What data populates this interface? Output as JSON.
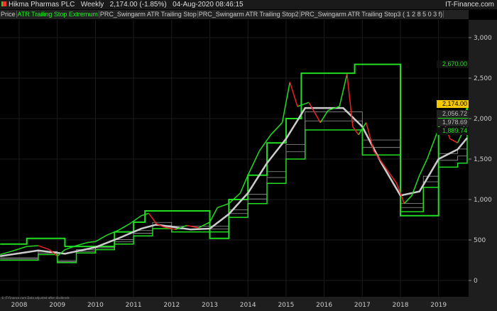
{
  "header": {
    "instrument": "Hikma Pharmas PLC",
    "period": "Weekly",
    "last": "2,174.00 (-1.85%)",
    "datetime": "04-Aug-2020 08:46:15",
    "brand": "IT-Finance.com"
  },
  "legend": {
    "items": [
      "Price",
      "ATR Trailing Stop Extremum",
      "PRC_Swingarm ATR Trailing Stop",
      "PRC_Swingarm ATR Trailing Stop2",
      "PRC_Swingarm ATR Trailing Stop3 ( 1 2 8 5 0 3 f)"
    ]
  },
  "footer": {
    "copyright": "© IT-Finance.com  Data adjusted after dividends"
  },
  "price_tags": [
    {
      "text": "2,670.00",
      "value": 2670,
      "color": "#22dd22",
      "bg": "#111"
    },
    {
      "text": "2,174.00",
      "value": 2174,
      "color": "#000",
      "bg": "#f5c800"
    },
    {
      "text": "2,056.72",
      "value": 2056.72,
      "color": "#bbb",
      "bg": "#222"
    },
    {
      "text": "1,978.69",
      "value": 1978.69,
      "color": "#bbb",
      "bg": "#222"
    },
    {
      "text": "1,889.74",
      "value": 1889.74,
      "color": "#22dd22",
      "bg": "#111"
    }
  ],
  "chart_data": {
    "type": "line",
    "xlabel": "",
    "ylabel": "",
    "ylim": [
      -200,
      3300
    ],
    "xlim": [
      2007.5,
      2019.75
    ],
    "y_ticks": [
      0,
      500,
      1000,
      1500,
      2000,
      2500,
      3000
    ],
    "y_tick_labels": [
      "0",
      "500",
      "1,000",
      "1,500",
      "2,000",
      "2,500",
      "3,000"
    ],
    "x_ticks": [
      2008,
      2009,
      2010,
      2011,
      2012,
      2013,
      2014,
      2015,
      2016,
      2017,
      2018,
      2019
    ],
    "grid": true,
    "colors": {
      "up": "#22dd22",
      "down": "#ee2222",
      "mid": "#cccccc",
      "band": "#999999"
    },
    "price": {
      "x": [
        2007.5,
        2007.8,
        2008.2,
        2008.5,
        2008.8,
        2009.0,
        2009.2,
        2009.5,
        2009.8,
        2010.0,
        2010.3,
        2010.6,
        2010.9,
        2011.2,
        2011.4,
        2011.6,
        2011.8,
        2012.1,
        2012.4,
        2012.7,
        2013.0,
        2013.2,
        2013.5,
        2013.8,
        2014.0,
        2014.3,
        2014.6,
        2014.9,
        2015.1,
        2015.3,
        2015.6,
        2015.9,
        2016.1,
        2016.4,
        2016.6,
        2016.75,
        2016.9,
        2017.1,
        2017.3,
        2017.6,
        2017.9,
        2018.1,
        2018.3,
        2018.5,
        2018.7,
        2018.9,
        2019.1,
        2019.3,
        2019.5,
        2019.65,
        2019.75
      ],
      "y": [
        320,
        360,
        420,
        430,
        380,
        300,
        380,
        430,
        470,
        480,
        560,
        620,
        700,
        800,
        830,
        700,
        660,
        630,
        680,
        650,
        720,
        900,
        950,
        1080,
        1300,
        1600,
        1800,
        1950,
        2450,
        2150,
        2200,
        1950,
        2100,
        2150,
        2550,
        1900,
        1800,
        1950,
        1600,
        1400,
        1200,
        950,
        1050,
        1300,
        1500,
        1750,
        2000,
        1750,
        1700,
        1850,
        2174
      ]
    },
    "mid": {
      "x": [
        2007.5,
        2008.5,
        2009.2,
        2010.0,
        2010.6,
        2011.2,
        2011.6,
        2012.5,
        2013.0,
        2013.5,
        2014.0,
        2014.5,
        2015.0,
        2015.5,
        2016.5,
        2017.0,
        2017.5,
        2018.0,
        2018.5,
        2019.0,
        2019.5,
        2019.75
      ],
      "y": [
        300,
        370,
        330,
        410,
        520,
        640,
        690,
        630,
        640,
        820,
        1080,
        1450,
        1750,
        2130,
        2130,
        1900,
        1450,
        1050,
        1100,
        1500,
        1620,
        1760
      ]
    },
    "stop_extremum": {
      "x": [
        2007.5,
        2008.2,
        2008.8,
        2009.2,
        2010.5,
        2011.0,
        2011.3,
        2011.6,
        2013.0,
        2013.5,
        2014.0,
        2014.5,
        2015.0,
        2015.4,
        2016.5,
        2016.8,
        2017.0,
        2018.0,
        2018.4,
        2019.0,
        2019.65,
        2019.75
      ],
      "y": [
        450,
        520,
        520,
        420,
        600,
        720,
        860,
        860,
        520,
        1000,
        1300,
        1700,
        2000,
        2560,
        2560,
        2670,
        2670,
        800,
        800,
        2000,
        2000,
        2180
      ]
    },
    "stop_lower": {
      "x": [
        2007.5,
        2008.5,
        2009.0,
        2009.5,
        2010.0,
        2010.5,
        2011.0,
        2011.5,
        2012.0,
        2013.0,
        2013.5,
        2014.0,
        2014.5,
        2015.0,
        2015.5,
        2016.5,
        2017.0,
        2018.0,
        2018.3,
        2018.6,
        2019.0,
        2019.5,
        2019.75
      ],
      "y": [
        250,
        320,
        220,
        340,
        380,
        450,
        550,
        640,
        600,
        600,
        780,
        950,
        1200,
        1500,
        1860,
        1860,
        1550,
        850,
        850,
        1150,
        1400,
        1450,
        1890
      ]
    }
  }
}
